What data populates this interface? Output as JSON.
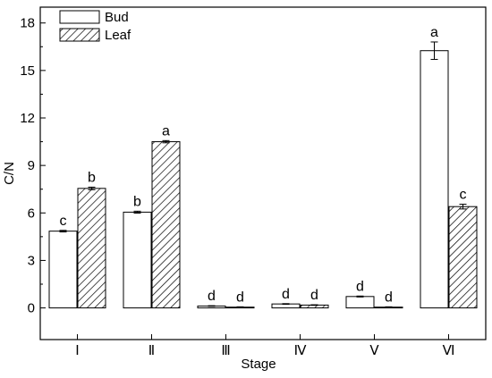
{
  "chart_data": {
    "type": "bar",
    "categories": [
      "Ⅰ",
      "Ⅱ",
      "Ⅲ",
      "Ⅳ",
      "Ⅴ",
      "Ⅵ"
    ],
    "series": [
      {
        "name": "Bud",
        "values": [
          4.85,
          6.05,
          0.12,
          0.25,
          0.72,
          16.25
        ],
        "errors": [
          0.05,
          0.06,
          0.02,
          0.02,
          0.03,
          0.55
        ],
        "sig_labels": [
          "c",
          "b",
          "d",
          "d",
          "d",
          "a"
        ],
        "fill": "white"
      },
      {
        "name": "Leaf",
        "values": [
          7.55,
          10.5,
          0.05,
          0.18,
          0.05,
          6.4
        ],
        "errors": [
          0.08,
          0.07,
          0.02,
          0.02,
          0.02,
          0.15
        ],
        "sig_labels": [
          "b",
          "a",
          "d",
          "d",
          "d",
          "c"
        ],
        "fill": "hatched"
      }
    ],
    "xlabel": "Stage",
    "ylabel": "C/N",
    "ylim": [
      -2,
      19
    ],
    "yticks": [
      0,
      3,
      6,
      9,
      12,
      15,
      18
    ],
    "grid": false,
    "legend_position": "top-left",
    "colors": {
      "stroke": "#000000",
      "bud_fill": "#ffffff",
      "hatch": "#000000"
    }
  }
}
